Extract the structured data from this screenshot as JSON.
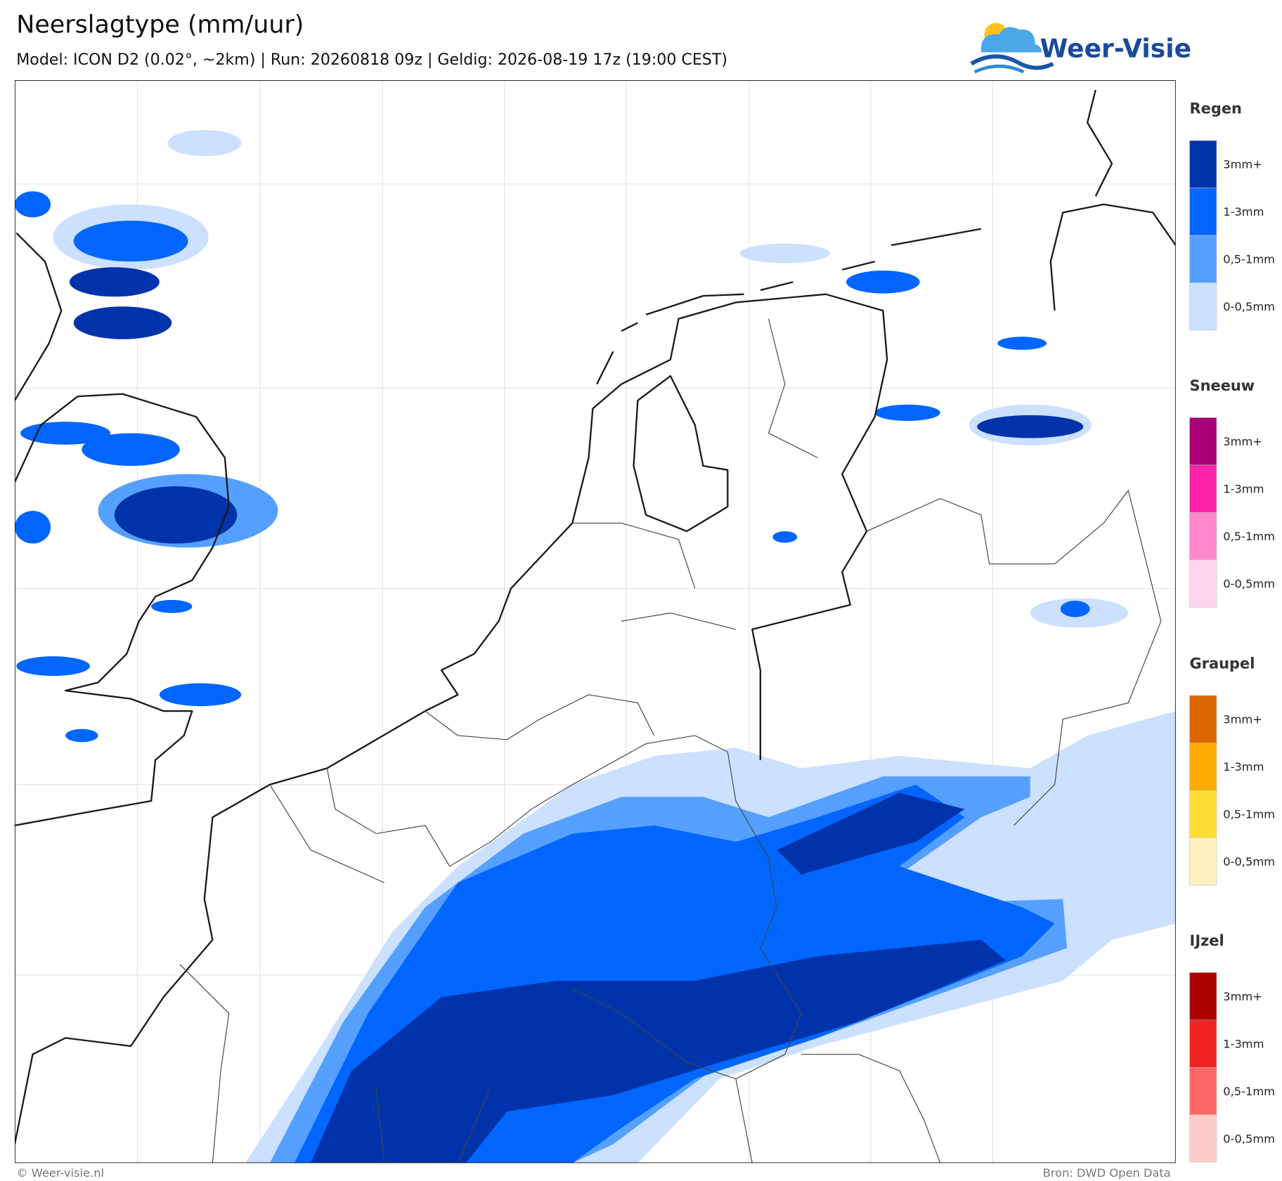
{
  "header": {
    "title": "Neerslagtype (mm/uur)",
    "subtitle": "Model: ICON D2 (0.02°, ~2km)  |  Run: 20260818 09z  |  Geldig: 2026-08-19 17z (19:00 CEST)",
    "logo": "Weer-Visie"
  },
  "legend": [
    {
      "title": "Regen",
      "items": [
        {
          "label": "3mm+",
          "color": "#0033aa"
        },
        {
          "label": "1-3mm",
          "color": "#0066ff"
        },
        {
          "label": "0,5-1mm",
          "color": "#55a0ff"
        },
        {
          "label": "0-0,5mm",
          "color": "#cce0ff"
        }
      ]
    },
    {
      "title": "Sneeuw",
      "items": [
        {
          "label": "3mm+",
          "color": "#aa0077"
        },
        {
          "label": "1-3mm",
          "color": "#ff22aa"
        },
        {
          "label": "0,5-1mm",
          "color": "#ff88cc"
        },
        {
          "label": "0-0,5mm",
          "color": "#ffd6ee"
        }
      ]
    },
    {
      "title": "Graupel",
      "items": [
        {
          "label": "3mm+",
          "color": "#dd6600"
        },
        {
          "label": "1-3mm",
          "color": "#ffaa00"
        },
        {
          "label": "0,5-1mm",
          "color": "#ffdd33"
        },
        {
          "label": "0-0,5mm",
          "color": "#fff2c0"
        }
      ]
    },
    {
      "title": "IJzel",
      "items": [
        {
          "label": "3mm+",
          "color": "#aa0000"
        },
        {
          "label": "1-3mm",
          "color": "#ee2222"
        },
        {
          "label": "0,5-1mm",
          "color": "#ff6666"
        },
        {
          "label": "0-0,5mm",
          "color": "#ffcccc"
        }
      ]
    }
  ],
  "footer": {
    "left": "© Weer-visie.nl",
    "right": "Bron: DWD Open Data"
  }
}
